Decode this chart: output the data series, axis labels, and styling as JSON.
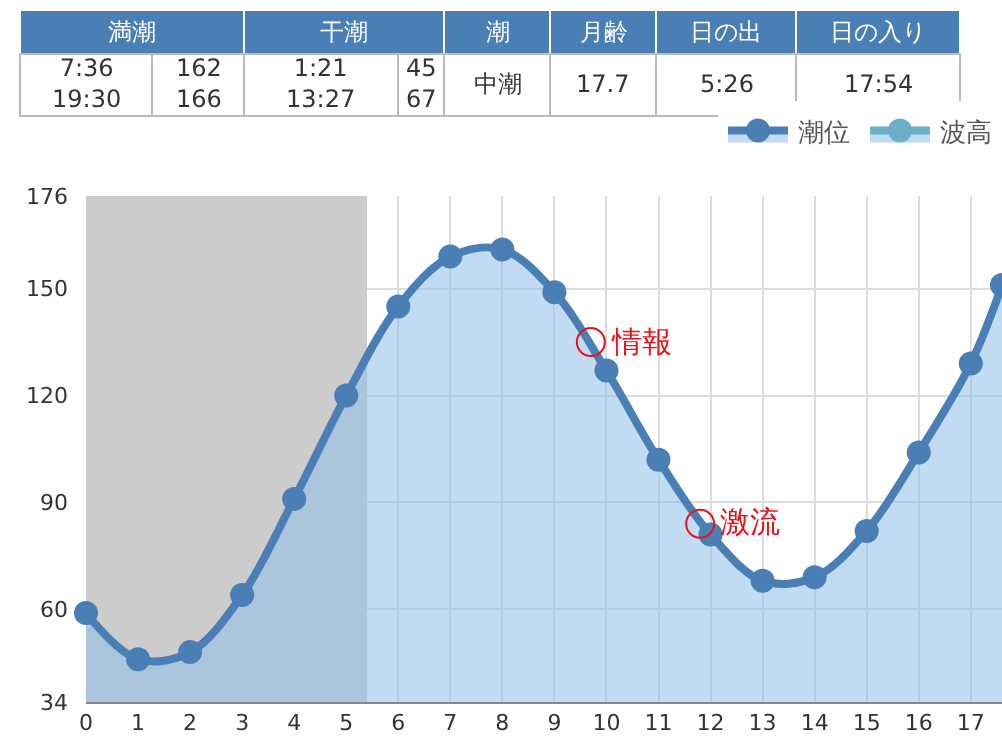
{
  "chart_data": [
    {
      "type": "other",
      "annotations": [
        "満潮",
        "干潮",
        "潮",
        "月齢",
        "日の出",
        "日の入り",
        "7:36\n19:30",
        "162\n166",
        "1:21\n13:27",
        "45\n67",
        "中潮",
        "17.7",
        "5:26",
        "17:54"
      ]
    },
    {
      "type": "area",
      "x": [
        0,
        1,
        2,
        3,
        4,
        5,
        6,
        7,
        8,
        9,
        10,
        11,
        12,
        13,
        14,
        15,
        16,
        17,
        17.6
      ],
      "series": [
        {
          "name": "潮位",
          "color": "#4a7fb5",
          "values": [
            59,
            46,
            48,
            64,
            91,
            120,
            145,
            159,
            161,
            149,
            127,
            102,
            81,
            68,
            69,
            82,
            104,
            129,
            151
          ]
        },
        {
          "name": "波高",
          "color": "#6aaec8",
          "values": [
            null,
            null,
            null,
            null,
            null,
            null,
            null,
            null,
            null,
            null,
            null,
            null,
            null,
            null,
            null,
            null,
            null,
            null,
            null
          ]
        }
      ],
      "xlim": [
        0,
        17.6
      ],
      "xticks": [
        0,
        1,
        2,
        3,
        4,
        5,
        6,
        7,
        8,
        9,
        10,
        11,
        12,
        13,
        14,
        15,
        16,
        17
      ],
      "ylim": [
        34,
        176
      ],
      "yticks": [
        34,
        60,
        90,
        120,
        150,
        176
      ],
      "bands": [
        {
          "axis": "x",
          "from": 0,
          "to": 5.4,
          "color": "#cccccc"
        }
      ],
      "annotations": [
        {
          "text": "情報",
          "x": 9.7,
          "y": 135
        },
        {
          "text": "激流",
          "x": 11.8,
          "y": 84
        }
      ],
      "grid": true,
      "legend": "top right",
      "marker": "circle",
      "line_style": "solid"
    }
  ]
}
